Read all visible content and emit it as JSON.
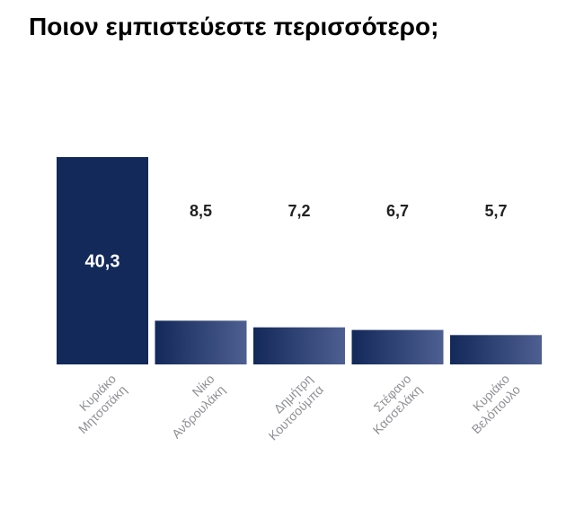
{
  "title": "Ποιον εμπιστεύεστε περισσότερο;",
  "colors": {
    "bar_dark": "#13295a",
    "bar_light": "#4e5f91",
    "value_label": "#222222",
    "value_label_inside": "#ffffff",
    "category_label": "#8f9095",
    "baseline": "#d2d4da"
  },
  "chart_data": {
    "type": "bar",
    "title": "Ποιον εμπιστεύεστε περισσότερο;",
    "xlabel": "",
    "ylabel": "",
    "ylim": [
      0,
      40.3
    ],
    "grid": false,
    "categories": [
      [
        "Κυριάκο",
        "Μητσοτάκη"
      ],
      [
        "Νίκο",
        "Ανδρουλάκη"
      ],
      [
        "Δημήτρη",
        "Κουτσούμπα"
      ],
      [
        "Στέφανο",
        "Κασσελάκη"
      ],
      [
        "Κυριάκο",
        "Βελόπουλο"
      ]
    ],
    "values": [
      40.3,
      8.5,
      7.2,
      6.7,
      5.7
    ],
    "value_labels": [
      "40,3",
      "8,5",
      "7,2",
      "6,7",
      "5,7"
    ]
  }
}
